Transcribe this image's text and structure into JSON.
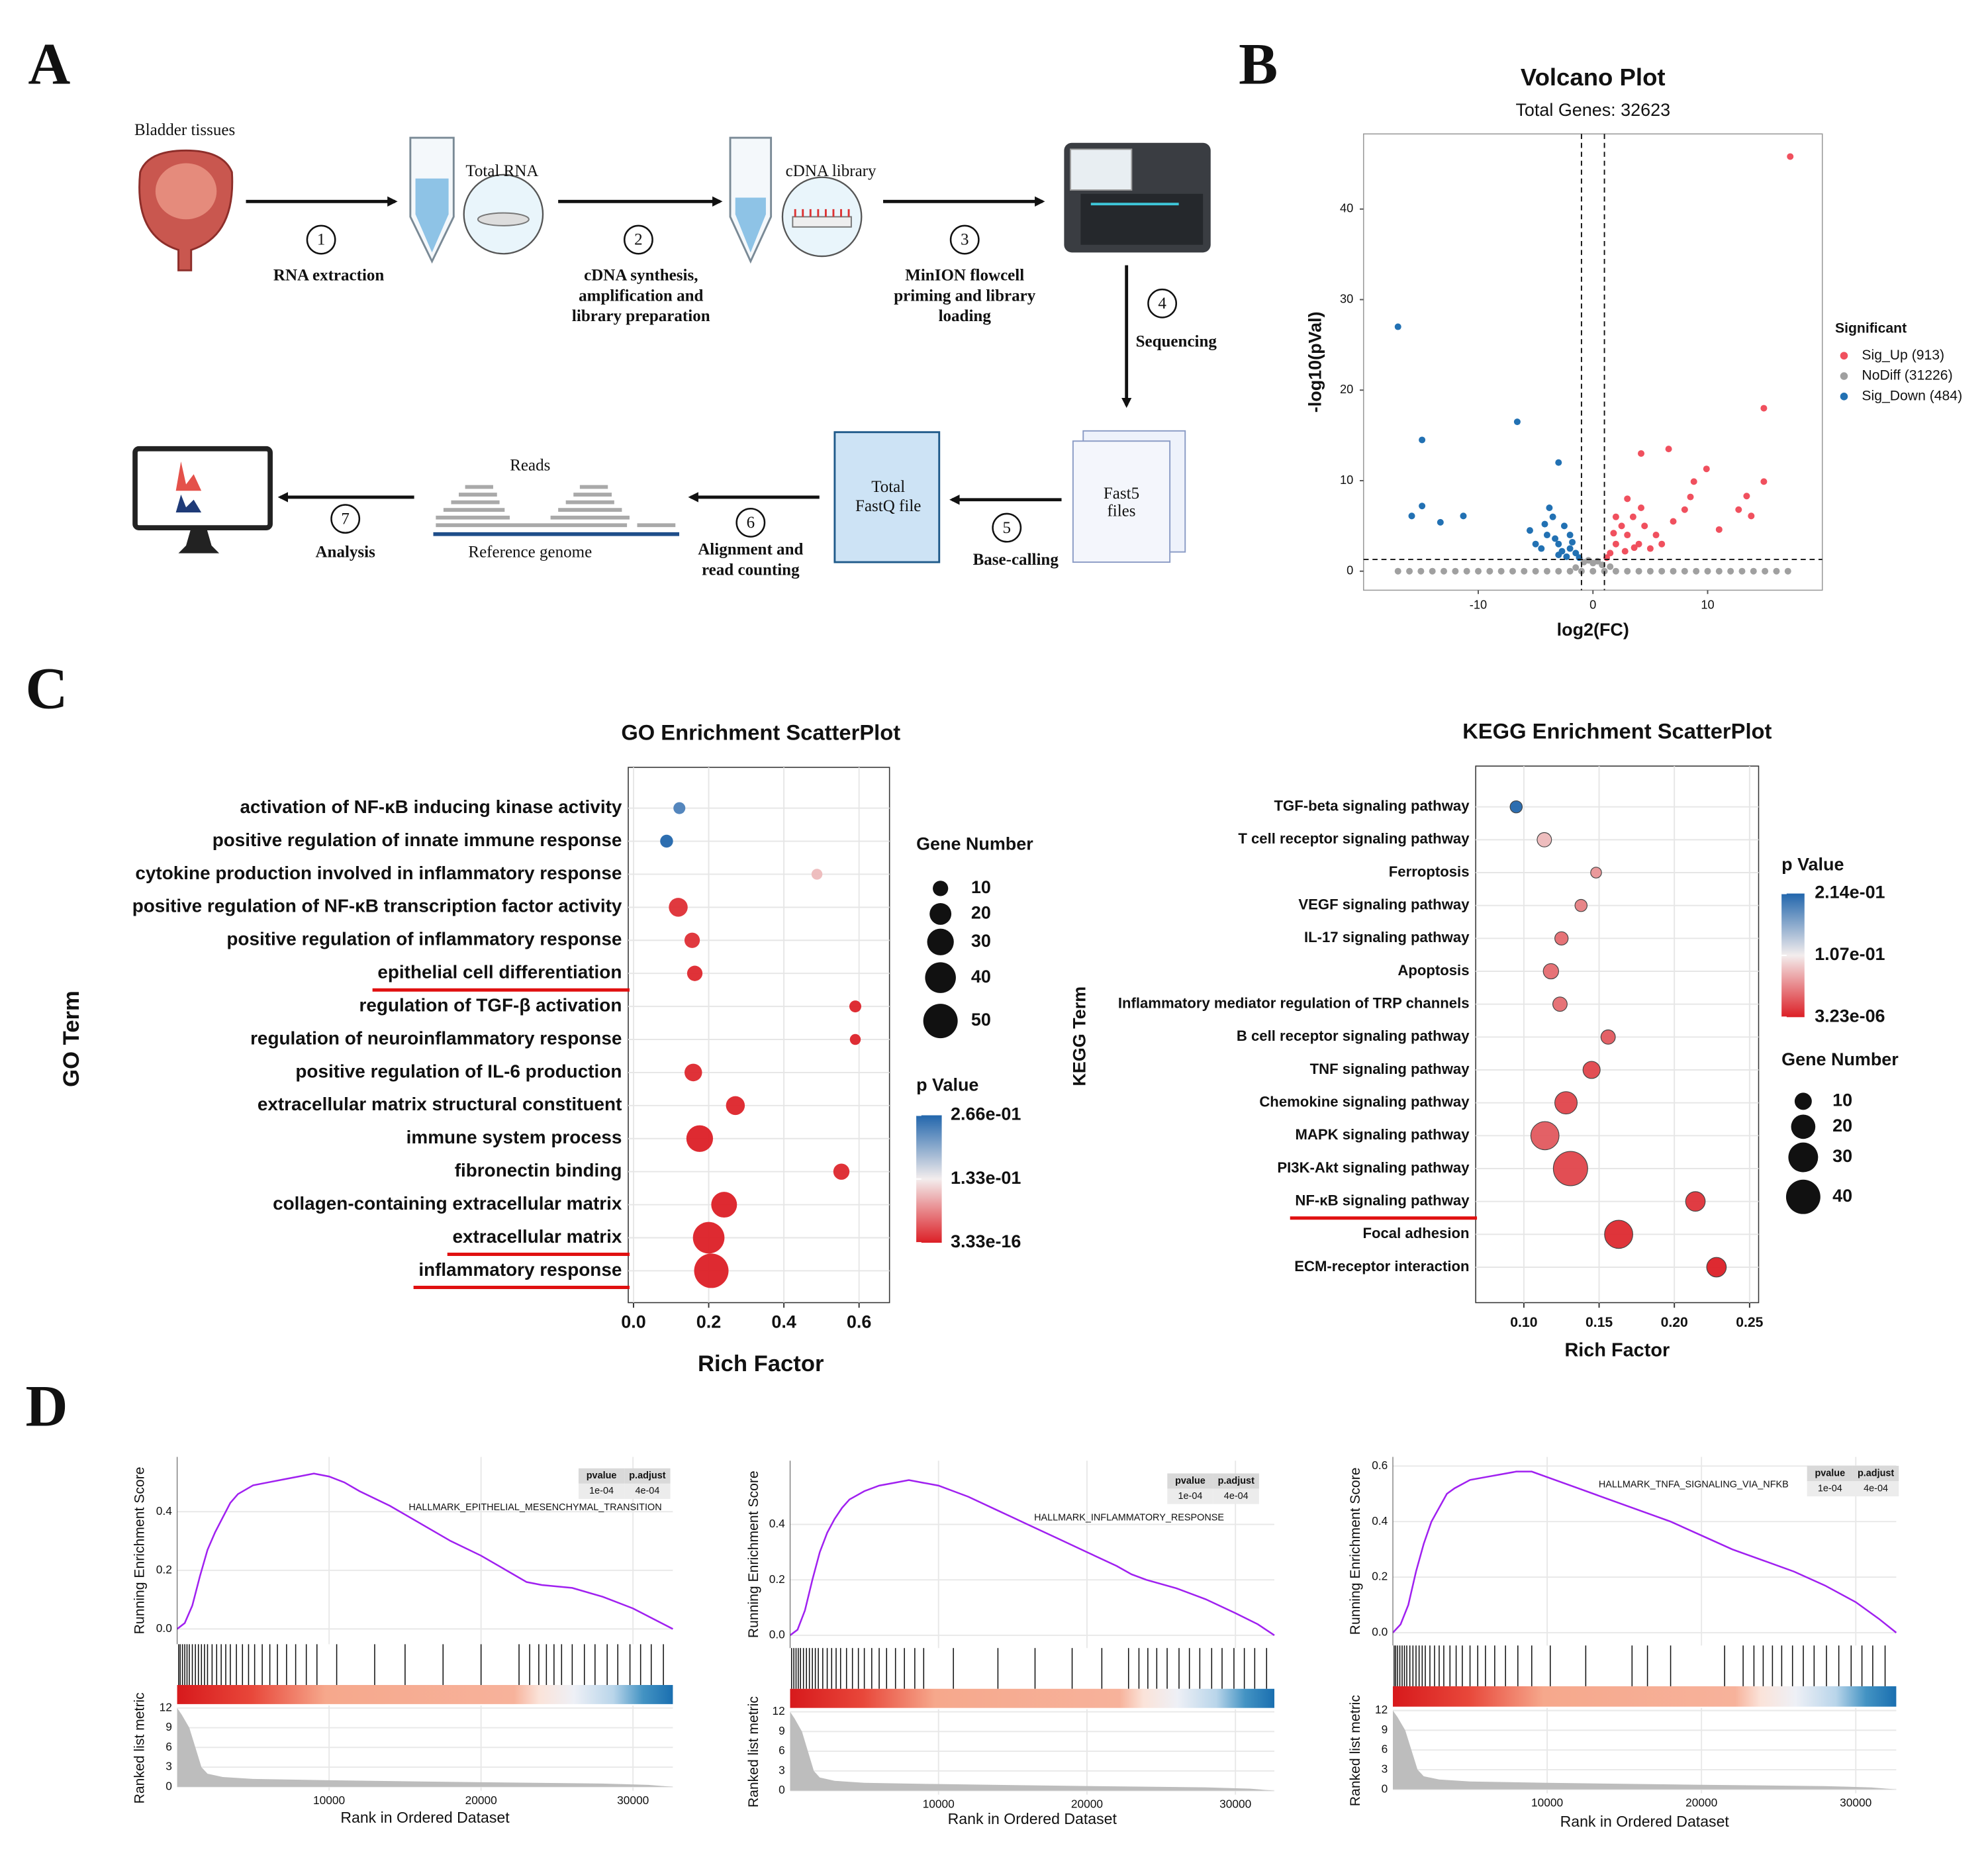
{
  "panel_labels": [
    "A",
    "B",
    "C",
    "D"
  ],
  "diagram": {
    "tissue": "Bladder tissues",
    "total_rna": "Total RNA",
    "cdna_library": "cDNA library",
    "steps": [
      {
        "number": 1,
        "label": [
          "RNA extraction"
        ]
      },
      {
        "number": 2,
        "label": [
          "cDNA synthesis,",
          "amplification and",
          "library preparation"
        ]
      },
      {
        "number": 3,
        "label": [
          "MinION flowcell",
          "priming and library",
          "loading"
        ]
      },
      {
        "number": 4,
        "label": [
          "Sequencing"
        ]
      },
      {
        "number": 5,
        "label": [
          "Base-calling"
        ]
      },
      {
        "number": 6,
        "label": [
          "Alignment and",
          "read counting"
        ]
      },
      {
        "number": 7,
        "label": [
          "Analysis"
        ]
      }
    ],
    "fast5": [
      "Fast5",
      "files"
    ],
    "fastq": [
      "Total",
      "FastQ file"
    ],
    "reads": "Reads",
    "reference": "Reference genome"
  },
  "chart_data": [
    {
      "type": "scatter",
      "title": "Volcano Plot",
      "subtitle": "Total Genes: 32623",
      "x_label": "log2(FC)",
      "y_label": "-log10(pVal)",
      "legend_title": "Significant",
      "legend_position": "right",
      "xlim": [
        -20,
        20
      ],
      "ylim": [
        -2.1,
        48.3
      ],
      "xticks": [
        -10,
        0,
        10
      ],
      "yticks": [
        0,
        10,
        20,
        30,
        40
      ],
      "vlines": [
        -1,
        1
      ],
      "hline": 1.3,
      "series": [
        {
          "name": "Sig_Up (913)",
          "color": "#f0505e",
          "x": [
            17.2,
            14.9,
            14.9,
            13.4,
            12.7,
            13.8,
            11.0,
            6.6,
            4.2,
            8.8,
            8.5,
            9.9,
            8.0,
            1.5,
            2.0,
            2.5,
            3.0,
            3.5,
            4.0,
            4.5,
            5.0,
            2.0,
            3.0,
            5.5,
            1.2,
            6.0,
            2.8,
            4.2,
            3.6,
            1.8,
            7.0
          ],
          "y": [
            45.8,
            18.0,
            9.9,
            8.3,
            6.8,
            6.1,
            4.6,
            13.5,
            13.0,
            9.9,
            8.2,
            11.3,
            6.8,
            2.0,
            3.0,
            5.0,
            4.0,
            6.0,
            3.0,
            5.0,
            2.5,
            6.0,
            8.0,
            4.0,
            1.5,
            3.0,
            2.2,
            7.0,
            2.6,
            4.2,
            5.5
          ]
        },
        {
          "name": "NoDiff (31226)",
          "color": "#a0a0a0",
          "x": [
            -17,
            -16,
            -15,
            -14,
            -13,
            -12,
            -11,
            -10,
            -9,
            -8,
            -7,
            -6,
            -5,
            -4,
            -3,
            -2,
            -1,
            0,
            1,
            2,
            3,
            4,
            5,
            6,
            7,
            8,
            9,
            10,
            11,
            12,
            13,
            14,
            15,
            16,
            17,
            -0.8,
            -0.4,
            0,
            0.4,
            0.8,
            -1.5,
            1.5
          ],
          "y": [
            0,
            0,
            0,
            0,
            0,
            0,
            0,
            0,
            0,
            0,
            0,
            0,
            0,
            0,
            0,
            0,
            0,
            0,
            0,
            0,
            0,
            0,
            0,
            0,
            0,
            0,
            0,
            0,
            0,
            0,
            0,
            0,
            0,
            0,
            0,
            1.0,
            1.2,
            0.9,
            1.1,
            0.7,
            0.4,
            0.5
          ]
        },
        {
          "name": "Sig_Down (484)",
          "color": "#2271b3",
          "x": [
            -17.0,
            -14.9,
            -6.6,
            -3.0,
            -15.8,
            -14.9,
            -13.3,
            -11.3,
            -4.0,
            -3.5,
            -3.0,
            -2.5,
            -2.0,
            -1.5,
            -4.5,
            -3.0,
            -2.0,
            -5.0,
            -1.2,
            -3.8,
            -2.7,
            -4.2,
            -3.3,
            -1.8,
            -2.3,
            -5.5
          ],
          "y": [
            27.0,
            14.5,
            16.5,
            12.0,
            6.1,
            7.2,
            5.4,
            6.1,
            4.0,
            6.0,
            3.0,
            5.0,
            2.5,
            2.0,
            2.5,
            1.8,
            4.0,
            3.0,
            1.5,
            7.0,
            2.2,
            5.2,
            3.6,
            3.2,
            1.6,
            4.5
          ]
        }
      ]
    },
    {
      "type": "enrichment",
      "title": "GO Enrichment ScatterPlot",
      "x_label": "Rich Factor",
      "y_label": "GO Term",
      "categories": [
        "activation of NF-κB inducing kinase activity",
        "positive regulation of innate immune response",
        "cytokine production involved in inflammatory response",
        "positive regulation of NF-κB transcription factor activity",
        "positive regulation of inflammatory response",
        "epithelial cell differentiation",
        "regulation of TGF-β activation",
        "regulation of neuroinflammatory response",
        "positive regulation of IL-6 production",
        "extracellular matrix structural constituent",
        "immune system process",
        "fibronectin binding",
        "collagen-containing extracellular matrix",
        "extracellular matrix",
        "inflammatory response"
      ],
      "values": [
        0.122,
        0.088,
        0.488,
        0.119,
        0.156,
        0.163,
        0.59,
        0.59,
        0.159,
        0.271,
        0.176,
        0.553,
        0.241,
        0.2,
        0.207
      ],
      "sizes": [
        6,
        7,
        5,
        15,
        10,
        10,
        6,
        5,
        13,
        15,
        30,
        11,
        28,
        42,
        50
      ],
      "p_values": [
        0.24,
        0.266,
        0.1,
        0.01,
        0.01,
        0.005,
        0.002,
        0.002,
        0.005,
        0.003,
        3.33e-16,
        0.005,
        1e-10,
        3.33e-16,
        3.33e-16
      ],
      "underline": [
        false,
        false,
        false,
        false,
        false,
        true,
        false,
        false,
        false,
        false,
        false,
        false,
        false,
        true,
        true
      ],
      "xlim": [
        -0.014,
        0.681
      ],
      "xticks": [
        {
          "value": 0,
          "label": "0.0"
        },
        0.2,
        0.4,
        0.6
      ],
      "grid": true,
      "size_legend_title": "Gene Number",
      "size_legend": [
        10,
        20,
        30,
        40,
        50
      ],
      "color_legend_title": "p Value",
      "color_lim": [
        3.33e-16,
        0.266
      ],
      "color_ticks": [
        {
          "value": 0.266,
          "label": "2.66e-01"
        },
        {
          "value": 0.133,
          "label": "1.33e-01"
        },
        {
          "value": 3.33e-16,
          "label": "3.33e-16"
        }
      ],
      "colors": [
        "#dc1f26",
        "#f3eded",
        "#2266ac"
      ]
    },
    {
      "type": "enrichment",
      "title": "KEGG Enrichment ScatterPlot",
      "x_label": "Rich Factor",
      "y_label": "KEGG Term",
      "categories": [
        "TGF-beta signaling pathway",
        "T cell receptor signaling pathway",
        "Ferroptosis",
        "VEGF signaling pathway",
        "IL-17 signaling pathway",
        "Apoptosis",
        "Inflammatory mediator regulation of TRP channels",
        "B cell receptor signaling pathway",
        "TNF signaling pathway",
        "Chemokine signaling pathway",
        "MAPK signaling pathway",
        "PI3K-Akt signaling pathway",
        "NF-κB signaling pathway",
        "Focal adhesion",
        "ECM-receptor interaction"
      ],
      "values": [
        0.0949,
        0.1136,
        0.148,
        0.138,
        0.125,
        0.118,
        0.124,
        0.156,
        0.145,
        0.128,
        0.114,
        0.131,
        0.214,
        0.163,
        0.228
      ],
      "sizes": [
        5,
        7,
        4,
        5,
        6,
        8,
        7,
        7,
        10,
        17,
        27,
        40,
        13,
        27,
        13
      ],
      "p_values": [
        0.214,
        0.08,
        0.06,
        0.05,
        0.04,
        0.04,
        0.04,
        0.03,
        0.02,
        0.02,
        0.03,
        0.02,
        0.01,
        0.005,
        3.23e-06
      ],
      "underline": [
        false,
        false,
        false,
        false,
        false,
        false,
        false,
        false,
        false,
        false,
        false,
        false,
        true,
        false,
        false
      ],
      "xlim": [
        0.068,
        0.256
      ],
      "xticks": [
        {
          "value": 0.1,
          "label": "0.10"
        },
        0.15,
        {
          "value": 0.2,
          "label": "0.20"
        },
        0.25
      ],
      "grid": true,
      "size_legend_title": "Gene Number",
      "size_legend": [
        10,
        20,
        30,
        40
      ],
      "color_legend_title": "p Value",
      "color_lim": [
        3.23e-06,
        0.214
      ],
      "color_ticks": [
        {
          "value": 0.214,
          "label": "2.14e-01"
        },
        {
          "value": 0.107,
          "label": "1.07e-01"
        },
        {
          "value": 3.23e-06,
          "label": "3.23e-06"
        }
      ],
      "colors": [
        "#dc1f26",
        "#f3eded",
        "#2266ac"
      ]
    },
    {
      "type": "gsea",
      "pathway": "HALLMARK_EPITHELIAL_MESENCHYMAL_TRANSITION",
      "y_label": "Running Enrichment Score",
      "metric_label": "Ranked list metric",
      "x_label": "Rank in Ordered Dataset",
      "color": "#a020f0",
      "table": {
        "header": [
          "pvalue",
          "p.adjust"
        ],
        "row": [
          "1e-04",
          "4e-04"
        ]
      },
      "x": [
        0,
        500,
        1000,
        1500,
        2000,
        2500,
        3000,
        3500,
        4000,
        5000,
        6000,
        7000,
        8000,
        9000,
        10000,
        11000,
        12000,
        14000,
        16000,
        18000,
        20000,
        22000,
        23000,
        24000,
        26000,
        28000,
        30000,
        31500,
        32623
      ],
      "values": [
        0,
        0.02,
        0.08,
        0.18,
        0.27,
        0.33,
        0.38,
        0.43,
        0.46,
        0.49,
        0.5,
        0.51,
        0.52,
        0.53,
        0.52,
        0.5,
        0.47,
        0.42,
        0.36,
        0.3,
        0.25,
        0.19,
        0.16,
        0.15,
        0.14,
        0.11,
        0.07,
        0.03,
        0
      ],
      "hits": [
        100,
        200,
        350,
        500,
        650,
        800,
        1000,
        1200,
        1400,
        1600,
        1800,
        2000,
        2300,
        2600,
        2900,
        3200,
        3500,
        3900,
        4300,
        4700,
        5100,
        5600,
        6100,
        6600,
        7200,
        7800,
        8500,
        9200,
        10500,
        13000,
        15000,
        17500,
        20000,
        22500,
        23200,
        23800,
        24300,
        24800,
        25300,
        26000,
        26800,
        27500,
        28300,
        29000,
        29800,
        30500,
        31200,
        32000
      ],
      "metric_x": [
        0,
        300,
        800,
        1200,
        1600,
        2000,
        3000,
        5000,
        10000,
        20000,
        28000,
        31000,
        32623
      ],
      "metric": [
        12,
        11,
        9,
        6,
        3,
        2,
        1.5,
        1.2,
        1.0,
        0.7,
        0.5,
        0.3,
        0
      ],
      "xlim": [
        0,
        32623
      ],
      "xticks": [
        10000,
        20000,
        30000
      ],
      "ylim": [
        -0.052,
        0.587
      ],
      "yticks": [
        {
          "value": 0,
          "label": "0.0"
        },
        0.2,
        0.4
      ],
      "metric_ylim": [
        -0.6,
        12.4
      ],
      "metric_yticks": [
        0,
        3,
        6,
        9,
        12
      ]
    },
    {
      "type": "gsea",
      "pathway": "HALLMARK_INFLAMMATORY_RESPONSE",
      "y_label": "Running Enrichment Score",
      "metric_label": "Ranked list metric",
      "x_label": "Rank in Ordered Dataset",
      "color": "#a020f0",
      "table": {
        "header": [
          "pvalue",
          "p.adjust"
        ],
        "row": [
          "1e-04",
          "4e-04"
        ]
      },
      "x": [
        0,
        500,
        1000,
        1500,
        2000,
        2500,
        3000,
        3500,
        4000,
        5000,
        6000,
        7000,
        8000,
        9000,
        10000,
        11000,
        12000,
        14000,
        16000,
        18000,
        20000,
        22000,
        23000,
        24000,
        26000,
        28000,
        30000,
        31500,
        32623
      ],
      "values": [
        0,
        0.02,
        0.09,
        0.2,
        0.3,
        0.37,
        0.42,
        0.46,
        0.49,
        0.52,
        0.54,
        0.55,
        0.56,
        0.55,
        0.54,
        0.52,
        0.5,
        0.45,
        0.4,
        0.35,
        0.3,
        0.25,
        0.22,
        0.2,
        0.17,
        0.13,
        0.08,
        0.04,
        0
      ],
      "hits": [
        100,
        250,
        400,
        550,
        700,
        900,
        1100,
        1300,
        1500,
        1700,
        1900,
        2200,
        2500,
        2800,
        3100,
        3400,
        3800,
        4200,
        4600,
        5000,
        5500,
        6000,
        6500,
        7100,
        7700,
        8400,
        9000,
        11000,
        14000,
        16500,
        19000,
        21000,
        22800,
        23500,
        24100,
        24700,
        25400,
        26200,
        26900,
        27600,
        28400,
        29100,
        29900,
        30600,
        31300,
        32100
      ],
      "metric_x": [
        0,
        300,
        800,
        1200,
        1600,
        2000,
        3000,
        5000,
        10000,
        20000,
        28000,
        31000,
        32623
      ],
      "metric": [
        12,
        11,
        9,
        6,
        3,
        2,
        1.5,
        1.2,
        1.0,
        0.7,
        0.5,
        0.3,
        0
      ],
      "xlim": [
        0,
        32623
      ],
      "xticks": [
        10000,
        20000,
        30000
      ],
      "ylim": [
        -0.046,
        0.63
      ],
      "yticks": [
        {
          "value": 0,
          "label": "0.0"
        },
        0.2,
        0.4
      ],
      "metric_ylim": [
        -0.6,
        12.4
      ],
      "metric_yticks": [
        0,
        3,
        6,
        9,
        12
      ]
    },
    {
      "type": "gsea",
      "pathway": "HALLMARK_TNFA_SIGNALING_VIA_NFKB",
      "y_label": "Running Enrichment Score",
      "metric_label": "Ranked list metric",
      "x_label": "Rank in Ordered Dataset",
      "color": "#a020f0",
      "table": {
        "header": [
          "pvalue",
          "p.adjust"
        ],
        "row": [
          "1e-04",
          "4e-04"
        ]
      },
      "x": [
        0,
        500,
        1000,
        1500,
        2000,
        2500,
        3000,
        3500,
        4000,
        5000,
        6000,
        7000,
        8000,
        9000,
        10000,
        11000,
        12000,
        14000,
        16000,
        18000,
        20000,
        22000,
        23000,
        24000,
        26000,
        28000,
        30000,
        31500,
        32623
      ],
      "values": [
        0,
        0.03,
        0.1,
        0.22,
        0.32,
        0.4,
        0.45,
        0.5,
        0.52,
        0.55,
        0.56,
        0.57,
        0.58,
        0.58,
        0.56,
        0.54,
        0.52,
        0.48,
        0.44,
        0.4,
        0.35,
        0.3,
        0.28,
        0.26,
        0.22,
        0.17,
        0.11,
        0.05,
        0
      ],
      "hits": [
        80,
        180,
        300,
        450,
        600,
        750,
        900,
        1100,
        1300,
        1500,
        1700,
        1900,
        2100,
        2400,
        2700,
        3000,
        3300,
        3700,
        4100,
        4500,
        5000,
        5500,
        6000,
        6600,
        7300,
        8100,
        9000,
        10200,
        12500,
        15500,
        16500,
        18000,
        21500,
        22700,
        23400,
        24000,
        24600,
        25200,
        25900,
        26600,
        27300,
        28100,
        28900,
        29700,
        30400,
        31100,
        31900
      ],
      "metric_x": [
        0,
        300,
        800,
        1200,
        1600,
        2000,
        3000,
        5000,
        10000,
        20000,
        28000,
        31000,
        32623
      ],
      "metric": [
        12,
        11,
        9,
        6,
        3,
        2,
        1.5,
        1.2,
        1.0,
        0.7,
        0.5,
        0.3,
        0
      ],
      "xlim": [
        0,
        32623
      ],
      "xticks": [
        10000,
        20000,
        30000
      ],
      "ylim": [
        -0.046,
        0.633
      ],
      "yticks": [
        {
          "value": 0,
          "label": "0.0"
        },
        0.2,
        0.4,
        0.6
      ],
      "metric_ylim": [
        -0.6,
        12.4
      ],
      "metric_yticks": [
        0,
        3,
        6,
        9,
        12
      ]
    }
  ]
}
